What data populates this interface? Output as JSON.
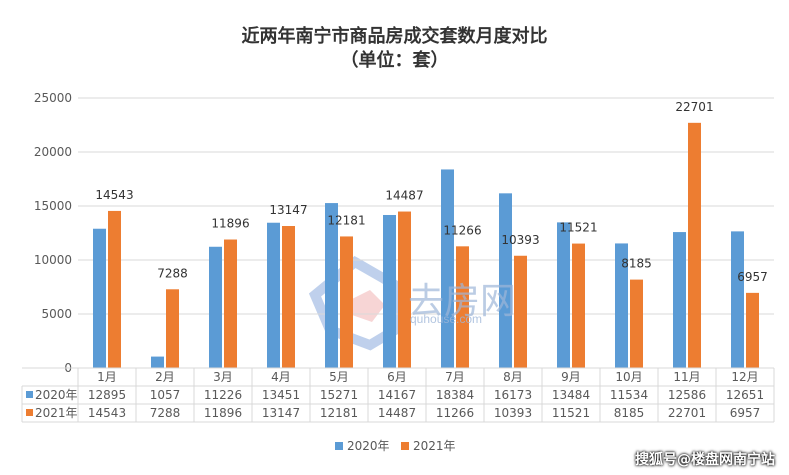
{
  "title_line1": "近两年南宁市商品房成交套数月度对比",
  "title_line2": "（单位：套）",
  "watermark": {
    "brand": "去房网",
    "url": "quhouse.com",
    "bottom_right": "搜狐号@楼盘网南宁站"
  },
  "colors": {
    "series_2020": "#5b9bd5",
    "series_2021": "#ed7d31",
    "grid": "#d9d9d9",
    "axis_text": "#595959"
  },
  "chart_data": {
    "type": "bar",
    "title": "近两年南宁市商品房成交套数月度对比（单位：套）",
    "categories": [
      "1月",
      "2月",
      "3月",
      "4月",
      "5月",
      "6月",
      "7月",
      "8月",
      "9月",
      "10月",
      "11月",
      "12月"
    ],
    "series": [
      {
        "name": "2020年",
        "values": [
          12895,
          1057,
          11226,
          13451,
          15271,
          14167,
          18384,
          16173,
          13484,
          11534,
          12586,
          12651
        ]
      },
      {
        "name": "2021年",
        "values": [
          14543,
          7288,
          11896,
          13147,
          12181,
          14487,
          11266,
          10393,
          11521,
          8185,
          22701,
          6957
        ]
      }
    ],
    "data_labels_series": "2021年",
    "ylim": [
      0,
      25000
    ],
    "yticks": [
      0,
      5000,
      10000,
      15000,
      20000,
      25000
    ],
    "grid": true,
    "legend_position": "bottom",
    "data_table": true
  }
}
